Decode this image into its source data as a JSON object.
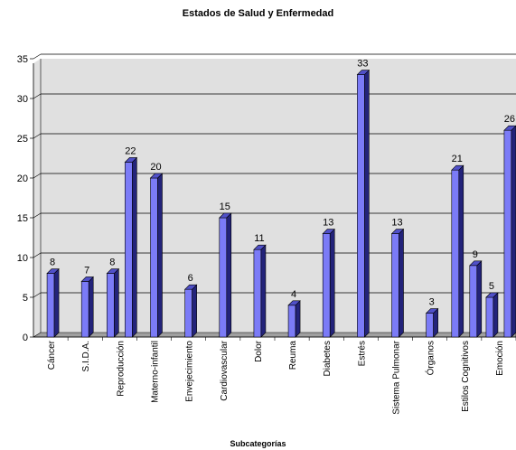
{
  "chart_data": {
    "type": "bar",
    "title": "Estados de Salud y Enfermedad",
    "xlabel": "Subcategorías",
    "ylabel": "",
    "ylim": [
      0,
      35
    ],
    "yticks": [
      "0",
      "5",
      "10",
      "15",
      "20",
      "25",
      "30",
      "35"
    ],
    "grid": true,
    "bar_color": "#7b7bf7",
    "plot_bg": "#e0e0e0",
    "categories": [
      "Cáncer",
      "S.I.D.A.",
      "Reproducción",
      "Materno-infantil",
      "Envejecimiento",
      "Cardiovascular",
      "Dolor",
      "Reuma",
      "Diabetes",
      "Estrés",
      "Sistema Pulmonar",
      "Órganos",
      "Estilos Cognitivos",
      "Emoción"
    ],
    "bars": [
      {
        "category": "Cáncer",
        "label": "8",
        "value": 8
      },
      {
        "category": "S.I.D.A.",
        "label": "7",
        "value": 7
      },
      {
        "category": "Reproducción",
        "label": "8",
        "value": 8
      },
      {
        "category": "Reproducción",
        "label": "22",
        "value": 22
      },
      {
        "category": "Materno-infantil",
        "label": "20",
        "value": 20
      },
      {
        "category": "Envejecimiento",
        "label": "6",
        "value": 6
      },
      {
        "category": "Cardiovascular",
        "label": "15",
        "value": 15
      },
      {
        "category": "Dolor",
        "label": "11",
        "value": 11
      },
      {
        "category": "Reuma",
        "label": "4",
        "value": 4
      },
      {
        "category": "Diabetes",
        "label": "13",
        "value": 13
      },
      {
        "category": "Estrés",
        "label": "33",
        "value": 33
      },
      {
        "category": "Sistema Pulmonar",
        "label": "13",
        "value": 13
      },
      {
        "category": "Órganos",
        "label": "3",
        "value": 3
      },
      {
        "category": "Estilos Cognitivos",
        "label": "21",
        "value": 21
      },
      {
        "category": "Estilos Cognitivos",
        "label": "9",
        "value": 9
      },
      {
        "category": "Emoción",
        "label": "5",
        "value": 5
      },
      {
        "category": "Emoción",
        "label": "26",
        "value": 26
      }
    ]
  }
}
